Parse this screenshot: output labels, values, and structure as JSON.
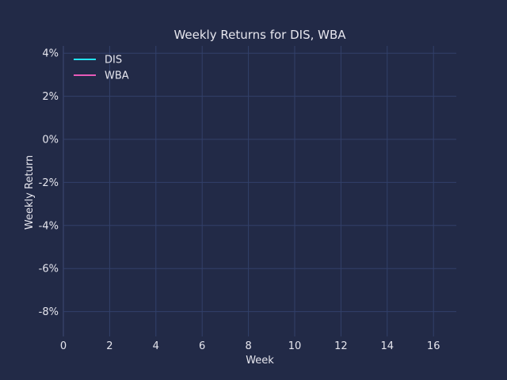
{
  "chart_data": {
    "type": "line",
    "title": "Weekly Returns for DIS, WBA",
    "xlabel": "Week",
    "ylabel": "Weekly Return",
    "xlim": [
      -0.3,
      17
    ],
    "ylim": [
      -0.092,
      0.043
    ],
    "x_ticks": [
      0,
      2,
      4,
      6,
      8,
      10,
      12,
      14,
      16
    ],
    "x_tick_labels": [
      "0",
      "2",
      "4",
      "6",
      "8",
      "10",
      "12",
      "14",
      "16"
    ],
    "y_ticks": [
      0.04,
      0.02,
      0.0,
      -0.02,
      -0.04,
      -0.06,
      -0.08
    ],
    "y_tick_labels": [
      "4%",
      "2%",
      "0%",
      "-2%",
      "-4%",
      "-6%",
      "-8%"
    ],
    "grid": true,
    "legend_position": "top-left",
    "series": [
      {
        "name": "DIS",
        "color": "#22e3ee",
        "x": [],
        "y": []
      },
      {
        "name": "WBA",
        "color": "#e85ab9",
        "x": [],
        "y": []
      }
    ]
  },
  "colors": {
    "background": "#222a47",
    "grid": "#32406a",
    "text": "#e6e6ee"
  }
}
